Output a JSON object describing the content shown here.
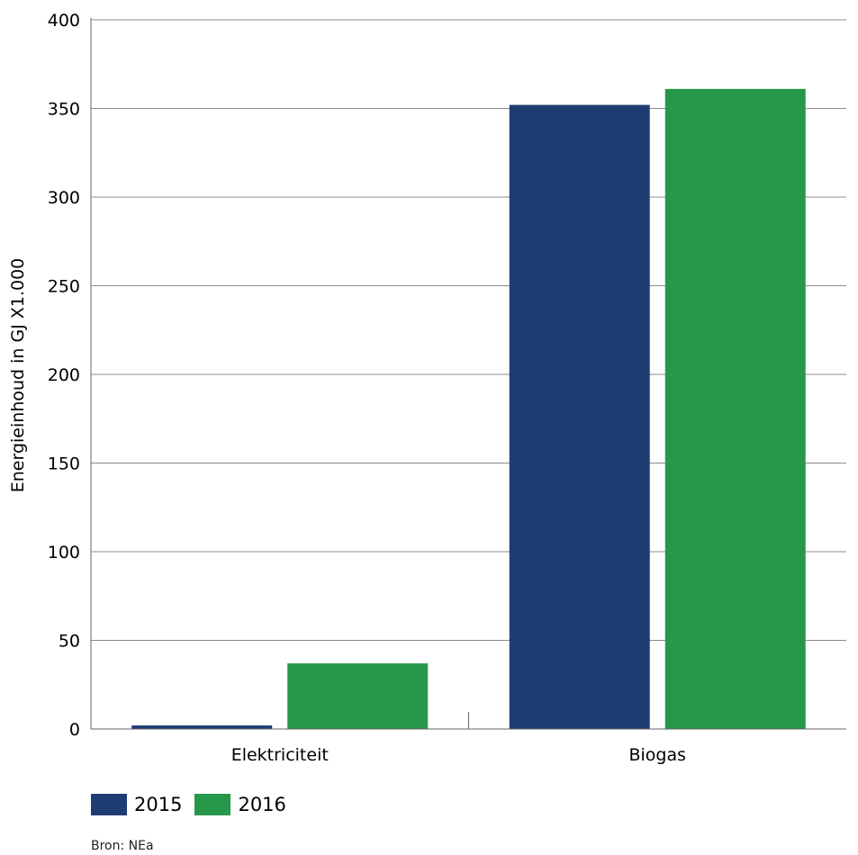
{
  "chart_data": {
    "type": "bar",
    "categories": [
      "Elektriciteit",
      "Biogas"
    ],
    "series": [
      {
        "name": "2015",
        "values": [
          2,
          352
        ],
        "color": "#1f3c73"
      },
      {
        "name": "2016",
        "values": [
          37,
          361
        ],
        "color": "#27974a"
      }
    ],
    "ylabel": "Energieinhoud in GJ X1.000",
    "ylim": [
      0,
      400
    ],
    "yticks": [
      0,
      50,
      100,
      150,
      200,
      250,
      300,
      350,
      400
    ],
    "grid": true,
    "legend_position": "bottom-left"
  },
  "source": "Bron: NEa"
}
